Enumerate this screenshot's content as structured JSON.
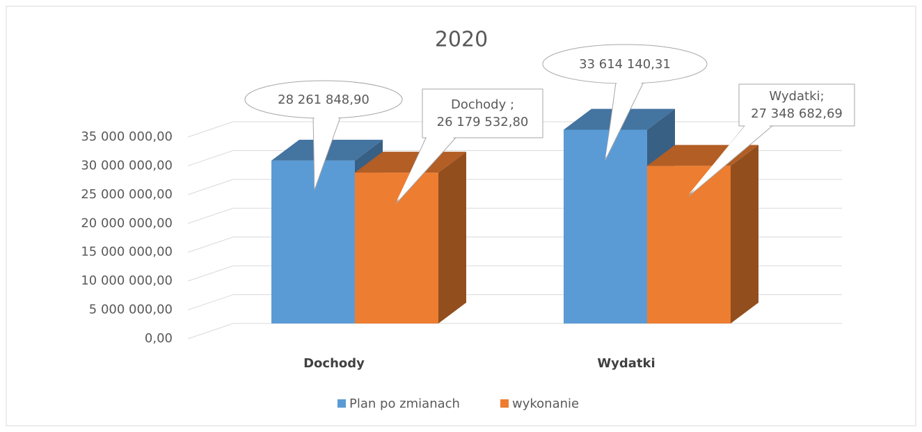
{
  "chart_data": {
    "type": "bar3d",
    "title": "2020",
    "categories": [
      "Dochody",
      "Wydatki"
    ],
    "series": [
      {
        "name": "Plan po zmianach",
        "color": "#5b9bd5",
        "values": [
          28261848.9,
          33614140.31
        ],
        "value_labels": [
          "28 261 848,90",
          "33 614 140,31"
        ]
      },
      {
        "name": "wykonanie",
        "color": "#ed7d31",
        "values": [
          26179532.8,
          27348682.69
        ],
        "value_labels": [
          "Dochody ;\n26 179 532,80",
          "Wydatki;\n27 348 682,69"
        ]
      }
    ],
    "ylim": [
      0,
      35000000
    ],
    "yticks": [
      {
        "value": 0,
        "label": "0,00"
      },
      {
        "value": 5000000,
        "label": "5 000 000,00"
      },
      {
        "value": 10000000,
        "label": "10 000 000,00"
      },
      {
        "value": 15000000,
        "label": "15 000 000,00"
      },
      {
        "value": 20000000,
        "label": "20 000 000,00"
      },
      {
        "value": 25000000,
        "label": "25 000 000,00"
      },
      {
        "value": 30000000,
        "label": "30 000 000,00"
      },
      {
        "value": 35000000,
        "label": "35 000 000,00"
      }
    ],
    "grid": true,
    "legend": "bottom"
  }
}
